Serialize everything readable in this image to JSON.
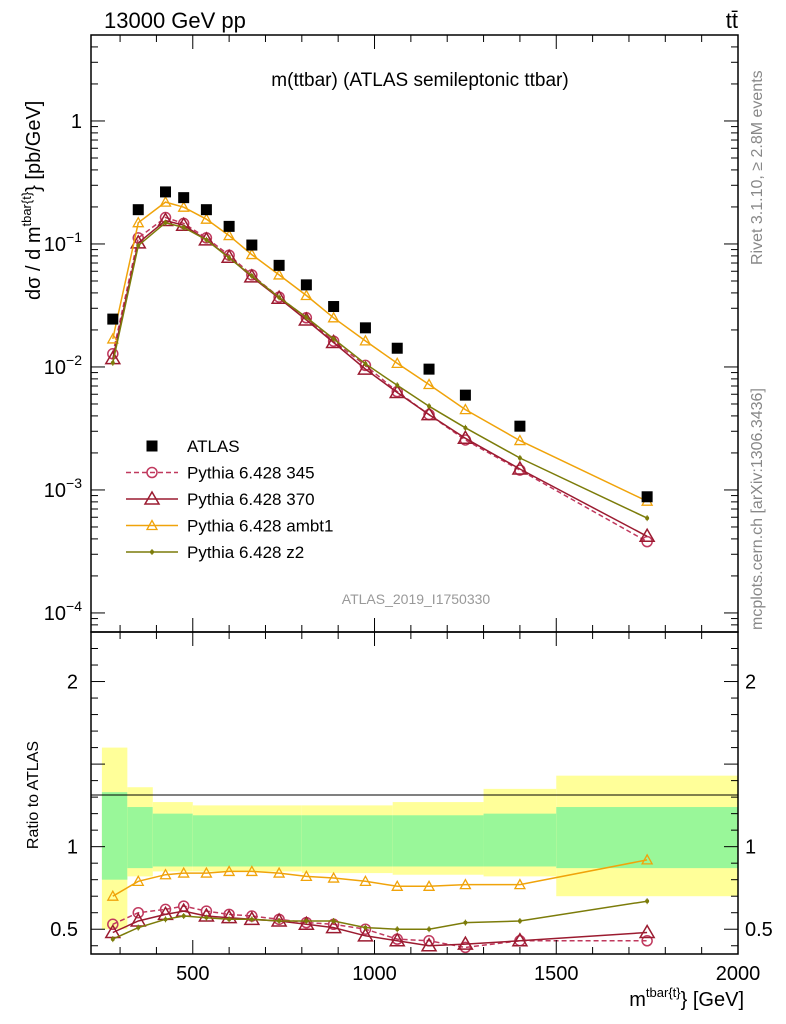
{
  "header": {
    "energy_label": "13000 GeV pp",
    "process_label": "tt̄"
  },
  "side_labels": {
    "rivet": "Rivet 3.1.10, ≥ 2.8M events",
    "mcplots": "mcplots.cern.ch [arXiv:1306.3436]"
  },
  "colors": {
    "atlas": "#000000",
    "p345": "#c0395e",
    "p370": "#9b1b30",
    "ambt1": "#f0a30a",
    "z2": "#7c7c0a",
    "band_inner": "#99f799",
    "band_outer": "#ffff99"
  },
  "chart_data": [
    {
      "type": "line",
      "title": "m(ttbar) (ATLAS semileptonic ttbar)",
      "xlabel_main": "m",
      "xlabel_sup": "tbar{t}",
      "xlabel_tail": "} [GeV]",
      "ylabel_main": "dσ / d m",
      "ylabel_sup": "tbar{t}",
      "ylabel_tail": "} [pb/GeV]",
      "watermark": "ATLAS_2019_I1750330",
      "xlim": [
        220,
        2000
      ],
      "ylim": [
        7e-05,
        5
      ],
      "yscale": "log",
      "y_ticks": [
        {
          "value": 1,
          "mant": "1",
          "exp": ""
        },
        {
          "value": 0.1,
          "mant": "10",
          "exp": "−1"
        },
        {
          "value": 0.01,
          "mant": "10",
          "exp": "−2"
        },
        {
          "value": 0.001,
          "mant": "10",
          "exp": "−3"
        },
        {
          "value": 0.0001,
          "mant": "10",
          "exp": "−4"
        }
      ],
      "legend_position": "lower-left",
      "series": [
        {
          "name": "ATLAS",
          "key": "atlas",
          "style": "square",
          "x": [
            280,
            350,
            425,
            475,
            537.5,
            600,
            662.5,
            737.5,
            812.5,
            887.5,
            975,
            1062.5,
            1150,
            1250,
            1400,
            1750
          ],
          "values": [
            0.0245,
            0.19,
            0.265,
            0.238,
            0.19,
            0.139,
            0.098,
            0.067,
            0.0465,
            0.031,
            0.0208,
            0.0142,
            0.0096,
            0.0059,
            0.0033,
            0.00088
          ]
        },
        {
          "name": "Pythia 6.428 345",
          "key": "p345",
          "style": "circle-dashed",
          "x": [
            280,
            350,
            425,
            475,
            537.5,
            600,
            662.5,
            737.5,
            812.5,
            887.5,
            975,
            1062.5,
            1150,
            1250,
            1400,
            1750
          ],
          "values": [
            0.0128,
            0.112,
            0.164,
            0.147,
            0.112,
            0.081,
            0.056,
            0.037,
            0.0251,
            0.0162,
            0.0103,
            0.0063,
            0.0041,
            0.00255,
            0.00145,
            0.00038
          ]
        },
        {
          "name": "Pythia 6.428 370",
          "key": "p370",
          "style": "triangle-large",
          "x": [
            280,
            350,
            425,
            475,
            537.5,
            600,
            662.5,
            737.5,
            812.5,
            887.5,
            975,
            1062.5,
            1150,
            1250,
            1400,
            1750
          ],
          "values": [
            0.0117,
            0.102,
            0.155,
            0.142,
            0.108,
            0.078,
            0.054,
            0.0362,
            0.0241,
            0.0158,
            0.0096,
            0.0062,
            0.0041,
            0.00263,
            0.00148,
            0.00042
          ]
        },
        {
          "name": "Pythia 6.428 ambt1",
          "key": "ambt1",
          "style": "triangle-small",
          "x": [
            280,
            350,
            425,
            475,
            537.5,
            600,
            662.5,
            737.5,
            812.5,
            887.5,
            975,
            1062.5,
            1150,
            1250,
            1400,
            1750
          ],
          "values": [
            0.0169,
            0.149,
            0.219,
            0.199,
            0.159,
            0.117,
            0.082,
            0.056,
            0.0381,
            0.0251,
            0.0163,
            0.0107,
            0.0072,
            0.0045,
            0.00252,
            0.00081
          ]
        },
        {
          "name": "Pythia 6.428 z2",
          "key": "z2",
          "style": "dot",
          "x": [
            280,
            350,
            425,
            475,
            537.5,
            600,
            662.5,
            737.5,
            812.5,
            887.5,
            975,
            1062.5,
            1150,
            1250,
            1400,
            1750
          ],
          "values": [
            0.0108,
            0.097,
            0.149,
            0.136,
            0.108,
            0.077,
            0.055,
            0.0368,
            0.0253,
            0.0169,
            0.0106,
            0.0071,
            0.0048,
            0.0032,
            0.00182,
            0.00059
          ]
        }
      ]
    },
    {
      "type": "line",
      "ylabel": "Ratio to ATLAS",
      "xlim": [
        220,
        2000
      ],
      "ylim": [
        0.35,
        2.3
      ],
      "x_ticks": [
        500,
        1000,
        1500,
        2000
      ],
      "y_ticks": [
        {
          "value": 0.5,
          "label": "0.5"
        },
        {
          "value": 1,
          "label": "1"
        },
        {
          "value": 2,
          "label": "2"
        }
      ],
      "bands": {
        "edges": [
          250,
          320,
          390,
          500,
          800,
          1050,
          1300,
          1500,
          2000
        ],
        "inner_lo": [
          0.8,
          0.87,
          0.88,
          0.88,
          0.88,
          0.88,
          0.88,
          0.87
        ],
        "inner_hi": [
          1.33,
          1.24,
          1.2,
          1.19,
          1.19,
          1.19,
          1.2,
          1.24
        ],
        "outer_lo": [
          0.5,
          0.82,
          0.85,
          0.85,
          0.84,
          0.83,
          0.82,
          0.7
        ],
        "outer_hi": [
          1.6,
          1.36,
          1.27,
          1.25,
          1.25,
          1.27,
          1.35,
          1.43
        ]
      },
      "series": [
        {
          "name": "Pythia 6.428 345",
          "key": "p345",
          "style": "circle-dashed",
          "x": [
            280,
            350,
            425,
            475,
            537.5,
            600,
            662.5,
            737.5,
            812.5,
            887.5,
            975,
            1062.5,
            1150,
            1250,
            1400,
            1750
          ],
          "values": [
            0.53,
            0.6,
            0.62,
            0.64,
            0.61,
            0.59,
            0.58,
            0.56,
            0.54,
            0.53,
            0.5,
            0.44,
            0.43,
            0.39,
            0.43,
            0.43
          ]
        },
        {
          "name": "Pythia 6.428 370",
          "key": "p370",
          "style": "triangle-large",
          "x": [
            280,
            350,
            425,
            475,
            537.5,
            600,
            662.5,
            737.5,
            812.5,
            887.5,
            975,
            1062.5,
            1150,
            1250,
            1400,
            1750
          ],
          "values": [
            0.48,
            0.55,
            0.59,
            0.61,
            0.58,
            0.57,
            0.56,
            0.55,
            0.53,
            0.51,
            0.46,
            0.43,
            0.4,
            0.41,
            0.43,
            0.48
          ]
        },
        {
          "name": "Pythia 6.428 ambt1",
          "key": "ambt1",
          "style": "triangle-small",
          "x": [
            280,
            350,
            425,
            475,
            537.5,
            600,
            662.5,
            737.5,
            812.5,
            887.5,
            975,
            1062.5,
            1150,
            1250,
            1400,
            1750
          ],
          "values": [
            0.7,
            0.79,
            0.83,
            0.84,
            0.84,
            0.85,
            0.85,
            0.84,
            0.82,
            0.81,
            0.79,
            0.76,
            0.76,
            0.77,
            0.77,
            0.92
          ]
        },
        {
          "name": "Pythia 6.428 z2",
          "key": "z2",
          "style": "dot",
          "x": [
            280,
            350,
            425,
            475,
            537.5,
            600,
            662.5,
            737.5,
            812.5,
            887.5,
            975,
            1062.5,
            1150,
            1250,
            1400,
            1750
          ],
          "values": [
            0.44,
            0.51,
            0.56,
            0.58,
            0.57,
            0.56,
            0.56,
            0.55,
            0.55,
            0.55,
            0.51,
            0.5,
            0.5,
            0.54,
            0.55,
            0.67
          ]
        }
      ]
    }
  ]
}
